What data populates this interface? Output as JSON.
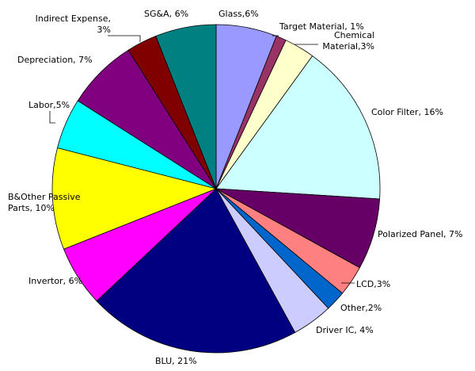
{
  "chart_data": {
    "type": "pie",
    "title": "",
    "start_angle_deg": 0,
    "direction": "clockwise",
    "slices": [
      {
        "name": "Glass",
        "value": 6,
        "color": "#9999FF",
        "label_lines": [
          "Glass,6%"
        ]
      },
      {
        "name": "Target Material",
        "value": 1,
        "color": "#993366",
        "label_lines": [
          "Target Material, 1%"
        ]
      },
      {
        "name": "Chemical Material",
        "value": 3,
        "color": "#FFFFCC",
        "label_lines": [
          "Chemical",
          "Material,3%"
        ]
      },
      {
        "name": "Color Filter",
        "value": 16,
        "color": "#CCFFFF",
        "label_lines": [
          "Color Filter, 16%"
        ]
      },
      {
        "name": "Polarized Panel",
        "value": 7,
        "color": "#660066",
        "label_lines": [
          "Polarized Panel, 7%"
        ]
      },
      {
        "name": "LCD",
        "value": 3,
        "color": "#FF8080",
        "label_lines": [
          "LCD,3%"
        ]
      },
      {
        "name": "Other",
        "value": 2,
        "color": "#0066CC",
        "label_lines": [
          "Other,2%"
        ]
      },
      {
        "name": "Driver IC",
        "value": 4,
        "color": "#CCCCFF",
        "label_lines": [
          "Driver IC, 4%"
        ]
      },
      {
        "name": "BLU",
        "value": 21,
        "color": "#000080",
        "label_lines": [
          "BLU, 21%"
        ]
      },
      {
        "name": "Invertor",
        "value": 6,
        "color": "#FF00FF",
        "label_lines": [
          "Invertor, 6%"
        ]
      },
      {
        "name": "B&Other Passive Parts",
        "value": 10,
        "color": "#FFFF00",
        "label_lines": [
          "B&Other Passive",
          "Parts, 10%"
        ]
      },
      {
        "name": "Labor",
        "value": 5,
        "color": "#00FFFF",
        "label_lines": [
          "Labor,5%"
        ]
      },
      {
        "name": "Depreciation",
        "value": 7,
        "color": "#800080",
        "label_lines": [
          "Depreciation, 7%"
        ]
      },
      {
        "name": "Indirect Expense",
        "value": 3,
        "color": "#800000",
        "label_lines": [
          "Indirect Expense,",
          "3%"
        ]
      },
      {
        "name": "SG&A",
        "value": 6,
        "color": "#008080",
        "label_lines": [
          "SG&A, 6%"
        ]
      }
    ]
  }
}
